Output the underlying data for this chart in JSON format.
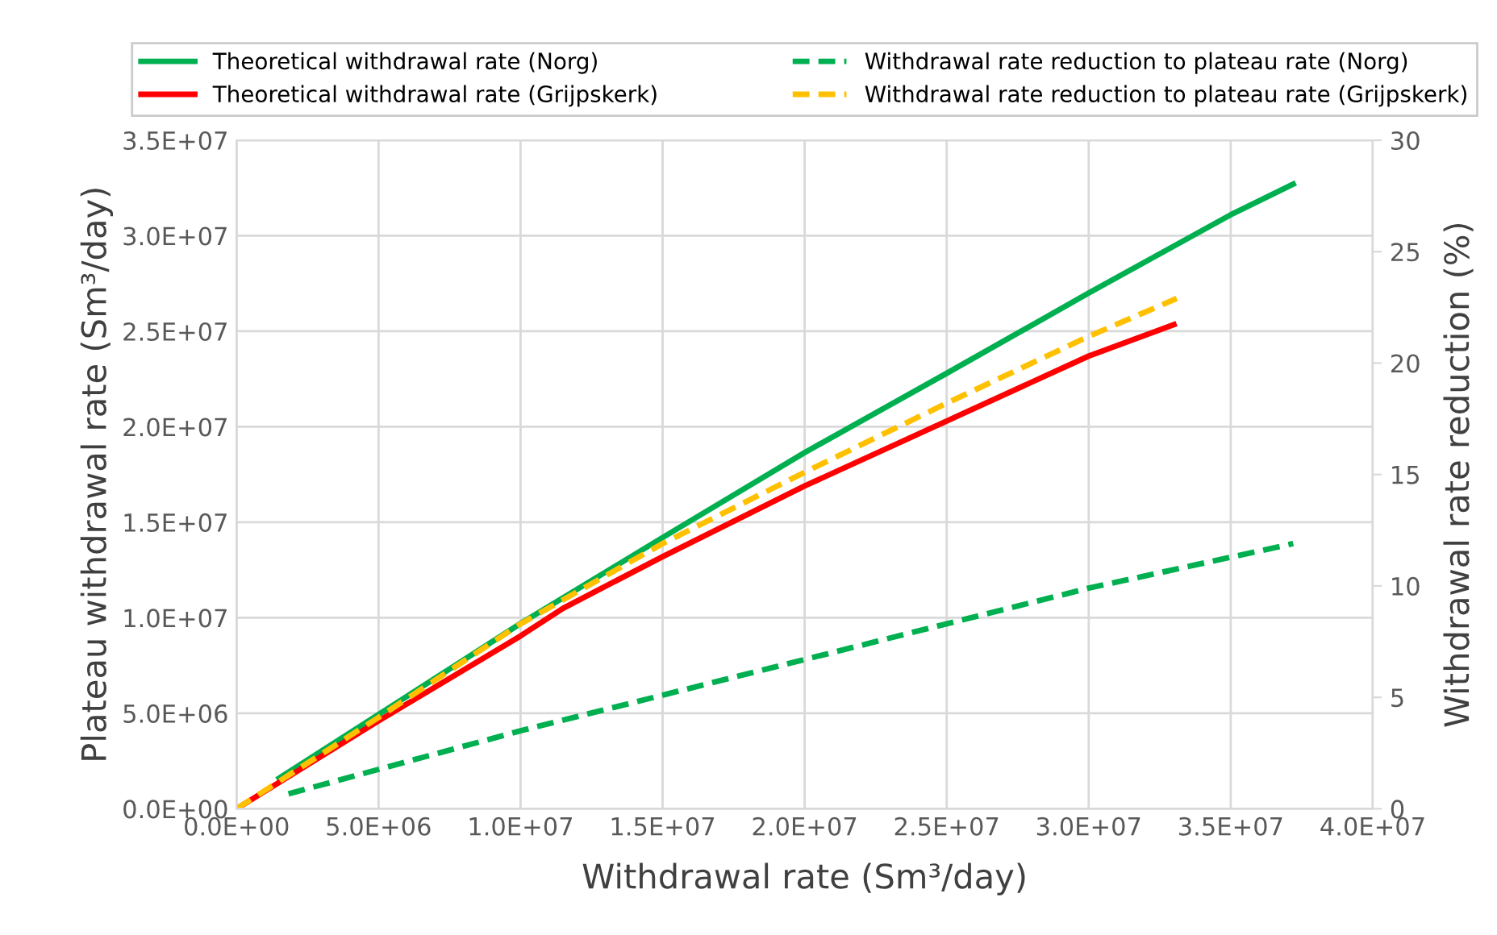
{
  "chart_data": {
    "type": "line",
    "xlabel": "Withdrawal rate (Sm³/day)",
    "ylabel": "Plateau withdrawal rate (Sm³/day)",
    "y2label": "Withdrawal rate reduction (%)",
    "xlim": [
      0,
      40000000
    ],
    "xticks": [
      {
        "value": 0,
        "label": "0.0E+00"
      },
      {
        "value": 5000000,
        "label": "5.0E+06"
      },
      {
        "value": 10000000,
        "label": "1.0E+07"
      },
      {
        "value": 15000000,
        "label": "1.5E+07"
      },
      {
        "value": 20000000,
        "label": "2.0E+07"
      },
      {
        "value": 25000000,
        "label": "2.5E+07"
      },
      {
        "value": 30000000,
        "label": "3.0E+07"
      },
      {
        "value": 35000000,
        "label": "3.5E+07"
      },
      {
        "value": 40000000,
        "label": "4.0E+07"
      }
    ],
    "ylim": [
      0,
      35000000
    ],
    "yticks": [
      {
        "value": 0,
        "label": "0.0E+00"
      },
      {
        "value": 5000000,
        "label": "5.0E+06"
      },
      {
        "value": 10000000,
        "label": "1.0E+07"
      },
      {
        "value": 15000000,
        "label": "1.5E+07"
      },
      {
        "value": 20000000,
        "label": "2.0E+07"
      },
      {
        "value": 25000000,
        "label": "2.5E+07"
      },
      {
        "value": 30000000,
        "label": "3.0E+07"
      },
      {
        "value": 35000000,
        "label": "3.5E+07"
      }
    ],
    "y2lim": [
      0,
      30
    ],
    "y2ticks": [
      0,
      5,
      10,
      15,
      20,
      25,
      30
    ],
    "grid": true,
    "legend": "top",
    "marker": "none",
    "series": [
      {
        "name": "Theoretical withdrawal rate (Norg)",
        "color": "#00b050",
        "line_style": "solid",
        "x": [
          1500000,
          10000000,
          15000000,
          20000000,
          25000000,
          30000000,
          35000000,
          37200000
        ],
        "values": [
          1600000,
          9700000,
          14200000,
          18650000,
          22800000,
          27000000,
          31100000,
          32700000
        ]
      },
      {
        "name": "Theoretical withdrawal rate (Grijpskerk)",
        "color": "#ff0000",
        "line_style": "solid",
        "x": [
          0,
          5000000,
          10000000,
          11500000,
          15000000,
          20000000,
          25000000,
          30000000,
          33000000
        ],
        "values": [
          0,
          4600000,
          9050000,
          10500000,
          13200000,
          16900000,
          20300000,
          23700000,
          25350000
        ]
      },
      {
        "name": "Withdrawal rate reduction to plateau rate (Norg)",
        "color": "#00b050",
        "line_style": "dashed",
        "axis": "y2",
        "x": [
          1830000,
          10000000,
          20000000,
          30000000,
          37200000
        ],
        "values": [
          0.67,
          3.5,
          6.7,
          9.9,
          11.9
        ]
      },
      {
        "name": "Withdrawal rate reduction to plateau rate (Grijpskerk)",
        "color": "#ffc000",
        "line_style": "dashed",
        "axis": "y2",
        "x": [
          0,
          5000000,
          10000000,
          15000000,
          20000000,
          25000000,
          30000000,
          33100000
        ],
        "values": [
          0,
          4.1,
          8.3,
          11.9,
          15.1,
          18.2,
          21.2,
          22.9
        ]
      }
    ]
  }
}
